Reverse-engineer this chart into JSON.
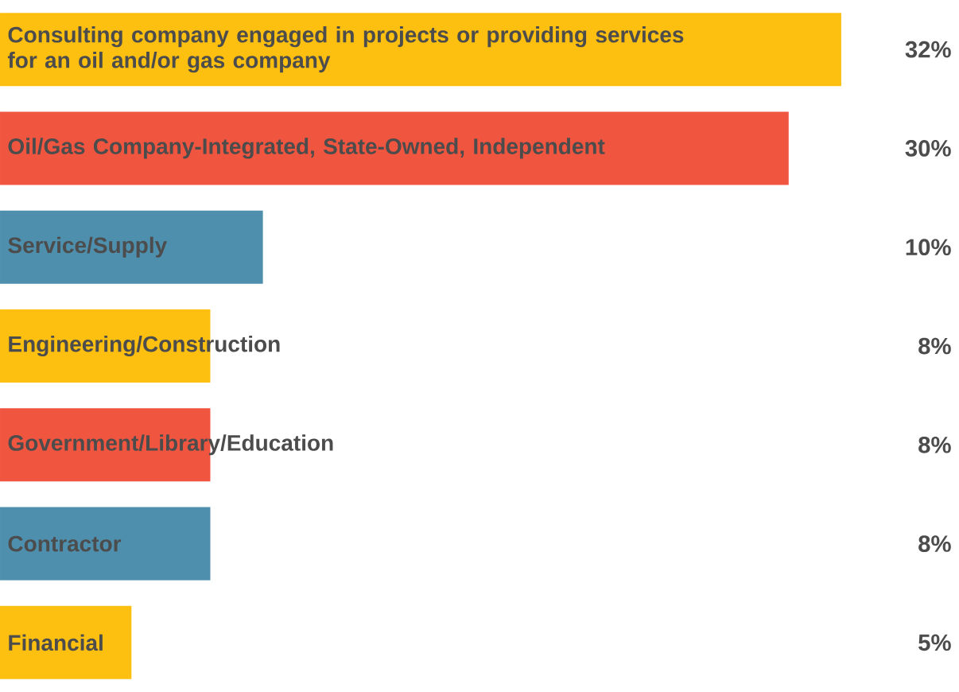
{
  "chart_data": {
    "type": "bar",
    "orientation": "horizontal",
    "categories": [
      "Consulting company engaged in projects or providing services for an oil and/or gas company",
      "Oil/Gas Company-Integrated, State-Owned, Independent",
      "Service/Supply",
      "Engineering/Construction",
      "Government/Library/Education",
      "Contractor",
      "Financial"
    ],
    "values": [
      32,
      30,
      10,
      8,
      8,
      8,
      5
    ],
    "colors": [
      "#fdc010",
      "#f05540",
      "#4e8fad",
      "#fdc010",
      "#f05540",
      "#4e8fad",
      "#fdc010"
    ],
    "value_labels": [
      "32%",
      "30%",
      "10%",
      "8%",
      "8%",
      "8%",
      "5%"
    ]
  }
}
